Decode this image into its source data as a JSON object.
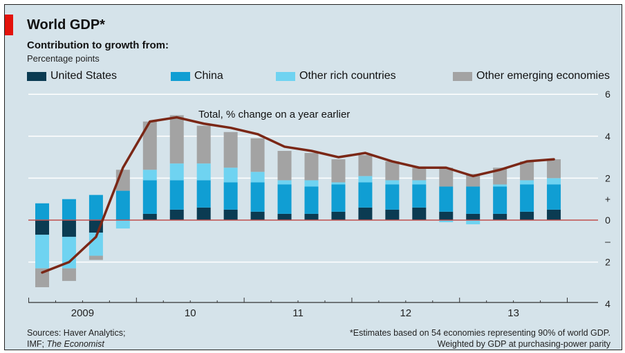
{
  "title": "World GDP*",
  "subtitle": "Contribution to growth from:",
  "unit_note": "Percentage points",
  "legend": [
    {
      "key": "us",
      "label": "United States",
      "color": "#0b3b52"
    },
    {
      "key": "china",
      "label": "China",
      "color": "#109ed3"
    },
    {
      "key": "rich",
      "label": "Other rich countries",
      "color": "#6fd3f1"
    },
    {
      "key": "emerging",
      "label": "Other emerging economies",
      "color": "#a3a3a3"
    }
  ],
  "total_label": "Total, % change on a year earlier",
  "source_lines": [
    "Sources: Haver Analytics;",
    "IMF; ",
    "The Economist"
  ],
  "footnote_lines": [
    "*Estimates based on 54 economies representing 90% of world GDP.",
    "Weighted by GDP at purchasing-power parity"
  ],
  "colors": {
    "background": "#d5e3ea",
    "accent": "#e3120b",
    "total_line": "#7a2716",
    "zero_line": "#c0504d",
    "grid": "#ffffff"
  },
  "chart_data": {
    "type": "bar",
    "stacked": true,
    "x": [
      "2009 Q1",
      "2009 Q2",
      "2009 Q3",
      "2009 Q4",
      "2010 Q1",
      "2010 Q2",
      "2010 Q3",
      "2010 Q4",
      "2011 Q1",
      "2011 Q2",
      "2011 Q3",
      "2011 Q4",
      "2012 Q1",
      "2012 Q2",
      "2012 Q3",
      "2012 Q4",
      "2013 Q1",
      "2013 Q2",
      "2013 Q3",
      "2013 Q4"
    ],
    "year_labels": [
      "2009",
      "10",
      "11",
      "12",
      "13"
    ],
    "ylim": [
      -4,
      6
    ],
    "y_ticks": [
      "6",
      "4",
      "2",
      "+",
      "0",
      "–",
      "2",
      "4"
    ],
    "y_tick_values": [
      6,
      4,
      2,
      1,
      0,
      -1,
      -2,
      -4
    ],
    "gridline_values": [
      6,
      4,
      2,
      -2
    ],
    "series": [
      {
        "name": "United States",
        "values": [
          -0.7,
          -0.8,
          -0.6,
          0.0,
          0.3,
          0.5,
          0.6,
          0.5,
          0.4,
          0.3,
          0.3,
          0.4,
          0.6,
          0.5,
          0.6,
          0.4,
          0.3,
          0.3,
          0.4,
          0.5
        ]
      },
      {
        "name": "China",
        "values": [
          0.8,
          1.0,
          1.2,
          1.4,
          1.6,
          1.4,
          1.3,
          1.3,
          1.4,
          1.4,
          1.3,
          1.3,
          1.2,
          1.2,
          1.1,
          1.2,
          1.3,
          1.3,
          1.3,
          1.2
        ]
      },
      {
        "name": "Other rich countries",
        "values": [
          -1.6,
          -1.5,
          -1.1,
          -0.4,
          0.5,
          0.8,
          0.8,
          0.7,
          0.5,
          0.2,
          0.3,
          0.1,
          0.3,
          0.2,
          0.2,
          -0.1,
          -0.2,
          0.1,
          0.2,
          0.3
        ]
      },
      {
        "name": "Other emerging economies",
        "values": [
          -0.9,
          -0.6,
          -0.2,
          1.0,
          2.3,
          2.3,
          1.8,
          1.7,
          1.6,
          1.4,
          1.3,
          1.1,
          1.0,
          0.9,
          0.6,
          0.9,
          0.6,
          0.8,
          0.9,
          0.9
        ]
      }
    ],
    "total": {
      "name": "Total, % change on a year earlier",
      "values": [
        -2.5,
        -2.0,
        -0.8,
        2.5,
        4.7,
        4.9,
        4.6,
        4.4,
        4.1,
        3.5,
        3.3,
        3.0,
        3.2,
        2.8,
        2.5,
        2.5,
        2.1,
        2.4,
        2.8,
        2.9
      ]
    }
  }
}
